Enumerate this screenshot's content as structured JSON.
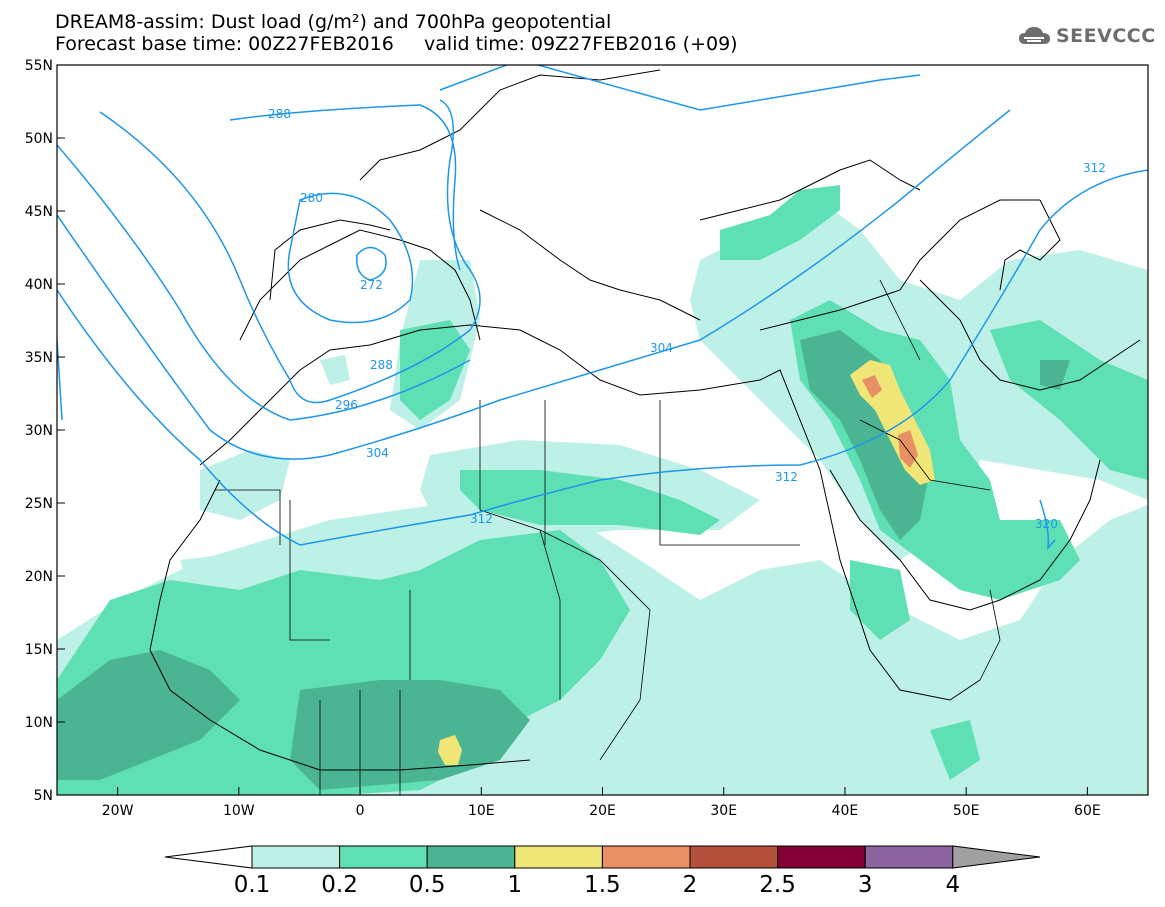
{
  "title_line1": "DREAM8-assim: Dust load (g/m²) and 700hPa geopotential",
  "title_line2": "Forecast base time: 00Z27FEB2016     valid time: 09Z27FEB2016 (+09)",
  "logo_text": "SEEVCCC",
  "logo_icon": "cloud-icon",
  "map": {
    "lon_range": [
      -25,
      65
    ],
    "lat_range": [
      5,
      55
    ],
    "x_ticks": [
      "20W",
      "10W",
      "0",
      "10E",
      "20E",
      "30E",
      "40E",
      "50E",
      "60E"
    ],
    "y_ticks": [
      "55N",
      "50N",
      "45N",
      "40N",
      "35N",
      "30N",
      "25N",
      "20N",
      "15N",
      "10N",
      "5N"
    ],
    "contour_labels": [
      "288",
      "280",
      "272",
      "288",
      "296",
      "304",
      "304",
      "312",
      "312",
      "312",
      "320"
    ]
  },
  "colorbar": {
    "levels": [
      "0.1",
      "0.2",
      "0.5",
      "1",
      "1.5",
      "2",
      "2.5",
      "3",
      "4"
    ],
    "colors": [
      "#ffffff",
      "#bdf0e6",
      "#5fe0b4",
      "#4ab493",
      "#f0e678",
      "#e89064",
      "#b4503c",
      "#820032",
      "#8c64a0",
      "#a0a0a0"
    ]
  }
}
